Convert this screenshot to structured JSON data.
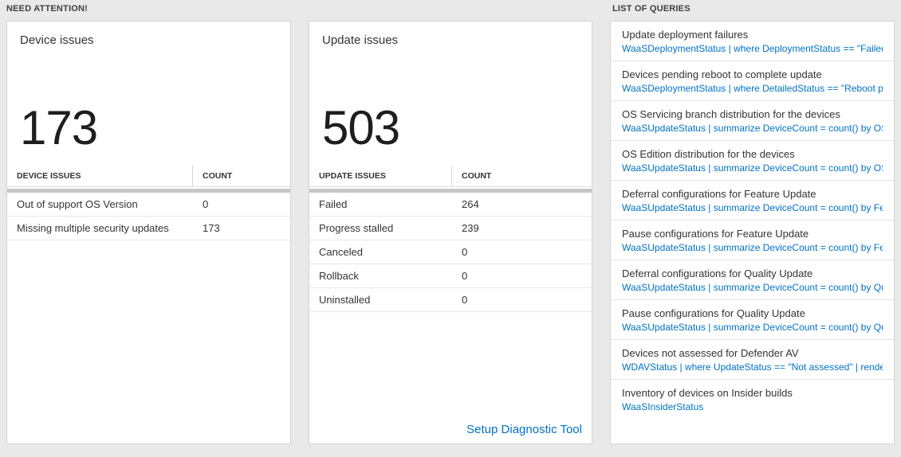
{
  "colors": {
    "accent_blue": "#0072c6",
    "page_bg": "#e9e9e9",
    "card_bg": "#ffffff"
  },
  "need_attention": {
    "header": "NEED ATTENTION!",
    "cards": [
      {
        "title": "Device issues",
        "big_number": "173",
        "table": {
          "columns": [
            "DEVICE ISSUES",
            "COUNT"
          ],
          "rows": [
            {
              "label": "Out of support OS Version",
              "count": "0"
            },
            {
              "label": "Missing multiple security updates",
              "count": "173"
            }
          ]
        }
      },
      {
        "title": "Update issues",
        "big_number": "503",
        "table": {
          "columns": [
            "UPDATE ISSUES",
            "COUNT"
          ],
          "rows": [
            {
              "label": "Failed",
              "count": "264"
            },
            {
              "label": "Progress stalled",
              "count": "239"
            },
            {
              "label": "Canceled",
              "count": "0"
            },
            {
              "label": "Rollback",
              "count": "0"
            },
            {
              "label": "Uninstalled",
              "count": "0"
            }
          ]
        },
        "footer_link": "Setup Diagnostic Tool"
      }
    ]
  },
  "queries": {
    "header": "LIST OF QUERIES",
    "items": [
      {
        "title": "Update deployment failures",
        "query": "WaaSDeploymentStatus | where DeploymentStatus == \"Failed\" |…"
      },
      {
        "title": "Devices pending reboot to complete update",
        "query": "WaaSDeploymentStatus | where DetailedStatus == \"Reboot pend…"
      },
      {
        "title": "OS Servicing branch distribution for the devices",
        "query": "WaaSUpdateStatus | summarize DeviceCount = count() by OSSer…"
      },
      {
        "title": "OS Edition distribution for the devices",
        "query": "WaaSUpdateStatus | summarize DeviceCount = count() by OSEdit…"
      },
      {
        "title": "Deferral configurations for Feature Update",
        "query": "WaaSUpdateStatus | summarize DeviceCount = count() by Featur…"
      },
      {
        "title": "Pause configurations for Feature Update",
        "query": "WaaSUpdateStatus | summarize DeviceCount = count() by Featur…"
      },
      {
        "title": "Deferral configurations for Quality Update",
        "query": "WaaSUpdateStatus | summarize DeviceCount = count() by Qualit…"
      },
      {
        "title": "Pause configurations for Quality Update",
        "query": "WaaSUpdateStatus | summarize DeviceCount = count() by Qualit…"
      },
      {
        "title": "Devices not assessed for Defender AV",
        "query": "WDAVStatus | where UpdateStatus == \"Not assessed\" | render ta…"
      },
      {
        "title": "Inventory of devices on Insider builds",
        "query": "WaaSInsiderStatus"
      }
    ]
  }
}
